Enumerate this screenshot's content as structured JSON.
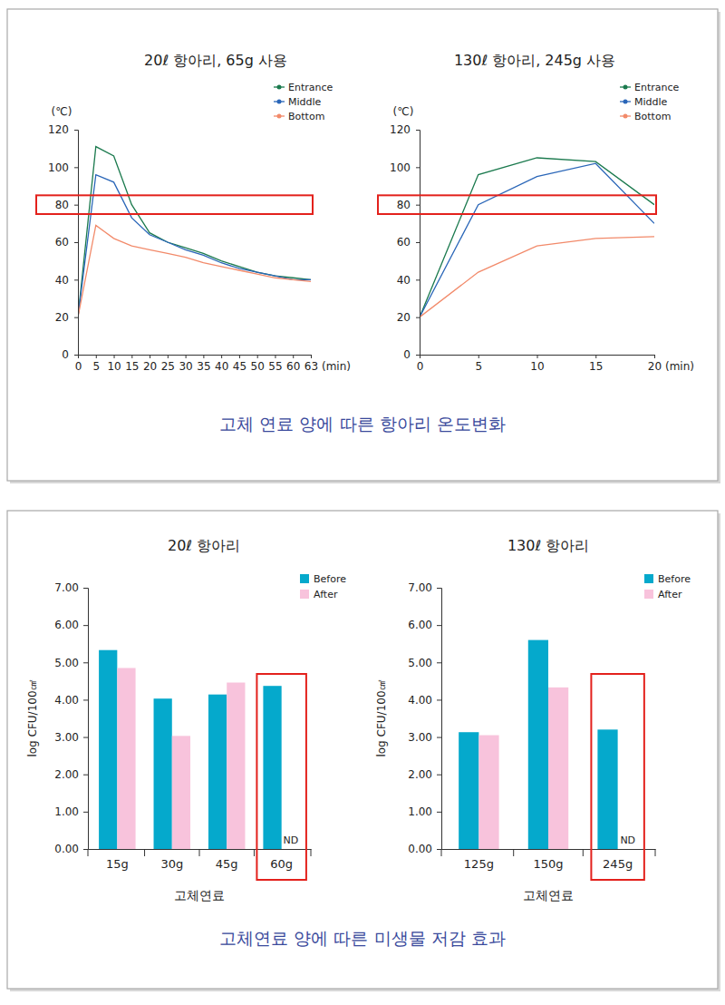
{
  "chart_data": [
    {
      "type": "line",
      "title": "20ℓ 항아리, 65g 사용",
      "xlabel": "(min)",
      "ylabel": "(℃)",
      "categories": [
        "0",
        "5",
        "10",
        "15",
        "20",
        "25",
        "30",
        "35",
        "40",
        "45",
        "50",
        "55",
        "60",
        "63"
      ],
      "series": [
        {
          "name": "Entrance",
          "color": "#1b7a4e",
          "values": [
            20,
            111,
            106,
            80,
            65,
            60,
            57,
            54,
            50,
            47,
            44,
            42,
            41,
            40
          ]
        },
        {
          "name": "Middle",
          "color": "#2a66b8",
          "values": [
            20,
            96,
            92,
            73,
            64,
            60,
            56,
            53,
            49,
            46,
            44,
            42,
            40,
            40
          ]
        },
        {
          "name": "Bottom",
          "color": "#f28a6a",
          "values": [
            20,
            69,
            62,
            58,
            56,
            54,
            52,
            49,
            47,
            45,
            43,
            41,
            40,
            39
          ]
        }
      ],
      "ylim": [
        0,
        120
      ],
      "yticks": [
        0,
        20,
        40,
        60,
        80,
        100,
        120
      ],
      "grid": false,
      "legend": "upper right",
      "highlight": [
        75,
        85
      ]
    },
    {
      "type": "line",
      "title": "130ℓ 항아리, 245g 사용",
      "xlabel": "(min)",
      "ylabel": "(℃)",
      "x": [
        0,
        5,
        10,
        15,
        20
      ],
      "series": [
        {
          "name": "Entrance",
          "color": "#1b7a4e",
          "values": [
            20,
            96,
            105,
            103,
            80
          ]
        },
        {
          "name": "Middle",
          "color": "#2a66b8",
          "values": [
            20,
            80,
            95,
            102,
            70
          ]
        },
        {
          "name": "Bottom",
          "color": "#f28a6a",
          "values": [
            20,
            44,
            58,
            62,
            63
          ]
        }
      ],
      "xlim": [
        0,
        20
      ],
      "xticks": [
        0,
        5,
        10,
        15,
        20
      ],
      "ylim": [
        0,
        120
      ],
      "yticks": [
        0,
        20,
        40,
        60,
        80,
        100,
        120
      ],
      "grid": false,
      "legend": "upper right",
      "highlight": [
        75,
        85
      ]
    },
    {
      "type": "bar",
      "title": "20ℓ 항아리",
      "xlabel": "고체연료",
      "ylabel": "log CFU/100㎠",
      "categories": [
        "15g",
        "30g",
        "45g",
        "60g"
      ],
      "series": [
        {
          "name": "Before",
          "color": "#05a9cc",
          "values": [
            5.33,
            4.03,
            4.14,
            4.37
          ]
        },
        {
          "name": "After",
          "color": "#f8c3dc",
          "values": [
            4.85,
            3.03,
            4.46,
            null
          ],
          "value_labels": [
            null,
            null,
            null,
            "ND"
          ]
        }
      ],
      "ylim": [
        0,
        7
      ],
      "yticks": [
        {
          "value": 0,
          "label": "0.00"
        },
        {
          "value": 1,
          "label": "1.00"
        },
        {
          "value": 2,
          "label": "2.00"
        },
        {
          "value": 3,
          "label": "3.00"
        },
        {
          "value": 4,
          "label": "4.00"
        },
        {
          "value": 5,
          "label": "5.00"
        },
        {
          "value": 6,
          "label": "6.00"
        },
        {
          "value": 7,
          "label": "7.00"
        }
      ],
      "grid": false,
      "legend": "upper right",
      "highlight": 3
    },
    {
      "type": "bar",
      "title": "130ℓ 항아리",
      "xlabel": "고체연료",
      "ylabel": "log CFU/100㎠",
      "categories": [
        "125g",
        "150g",
        "245g"
      ],
      "series": [
        {
          "name": "Before",
          "color": "#05a9cc",
          "values": [
            3.13,
            5.6,
            3.2
          ]
        },
        {
          "name": "After",
          "color": "#f8c3dc",
          "values": [
            3.05,
            4.33,
            null
          ],
          "value_labels": [
            null,
            null,
            "ND"
          ]
        }
      ],
      "ylim": [
        0,
        7
      ],
      "yticks": [
        {
          "value": 0,
          "label": "0.00"
        },
        {
          "value": 1,
          "label": "1.00"
        },
        {
          "value": 2,
          "label": "2.00"
        },
        {
          "value": 3,
          "label": "3.00"
        },
        {
          "value": 4,
          "label": "4.00"
        },
        {
          "value": 5,
          "label": "5.00"
        },
        {
          "value": 6,
          "label": "6.00"
        },
        {
          "value": 7,
          "label": "7.00"
        }
      ],
      "grid": false,
      "legend": "upper right",
      "highlight": 2
    }
  ],
  "captions": [
    "고체 연료 양에 따른 항아리 온도변화",
    "고체연료 양에 따른 미생물 저감 효과"
  ]
}
